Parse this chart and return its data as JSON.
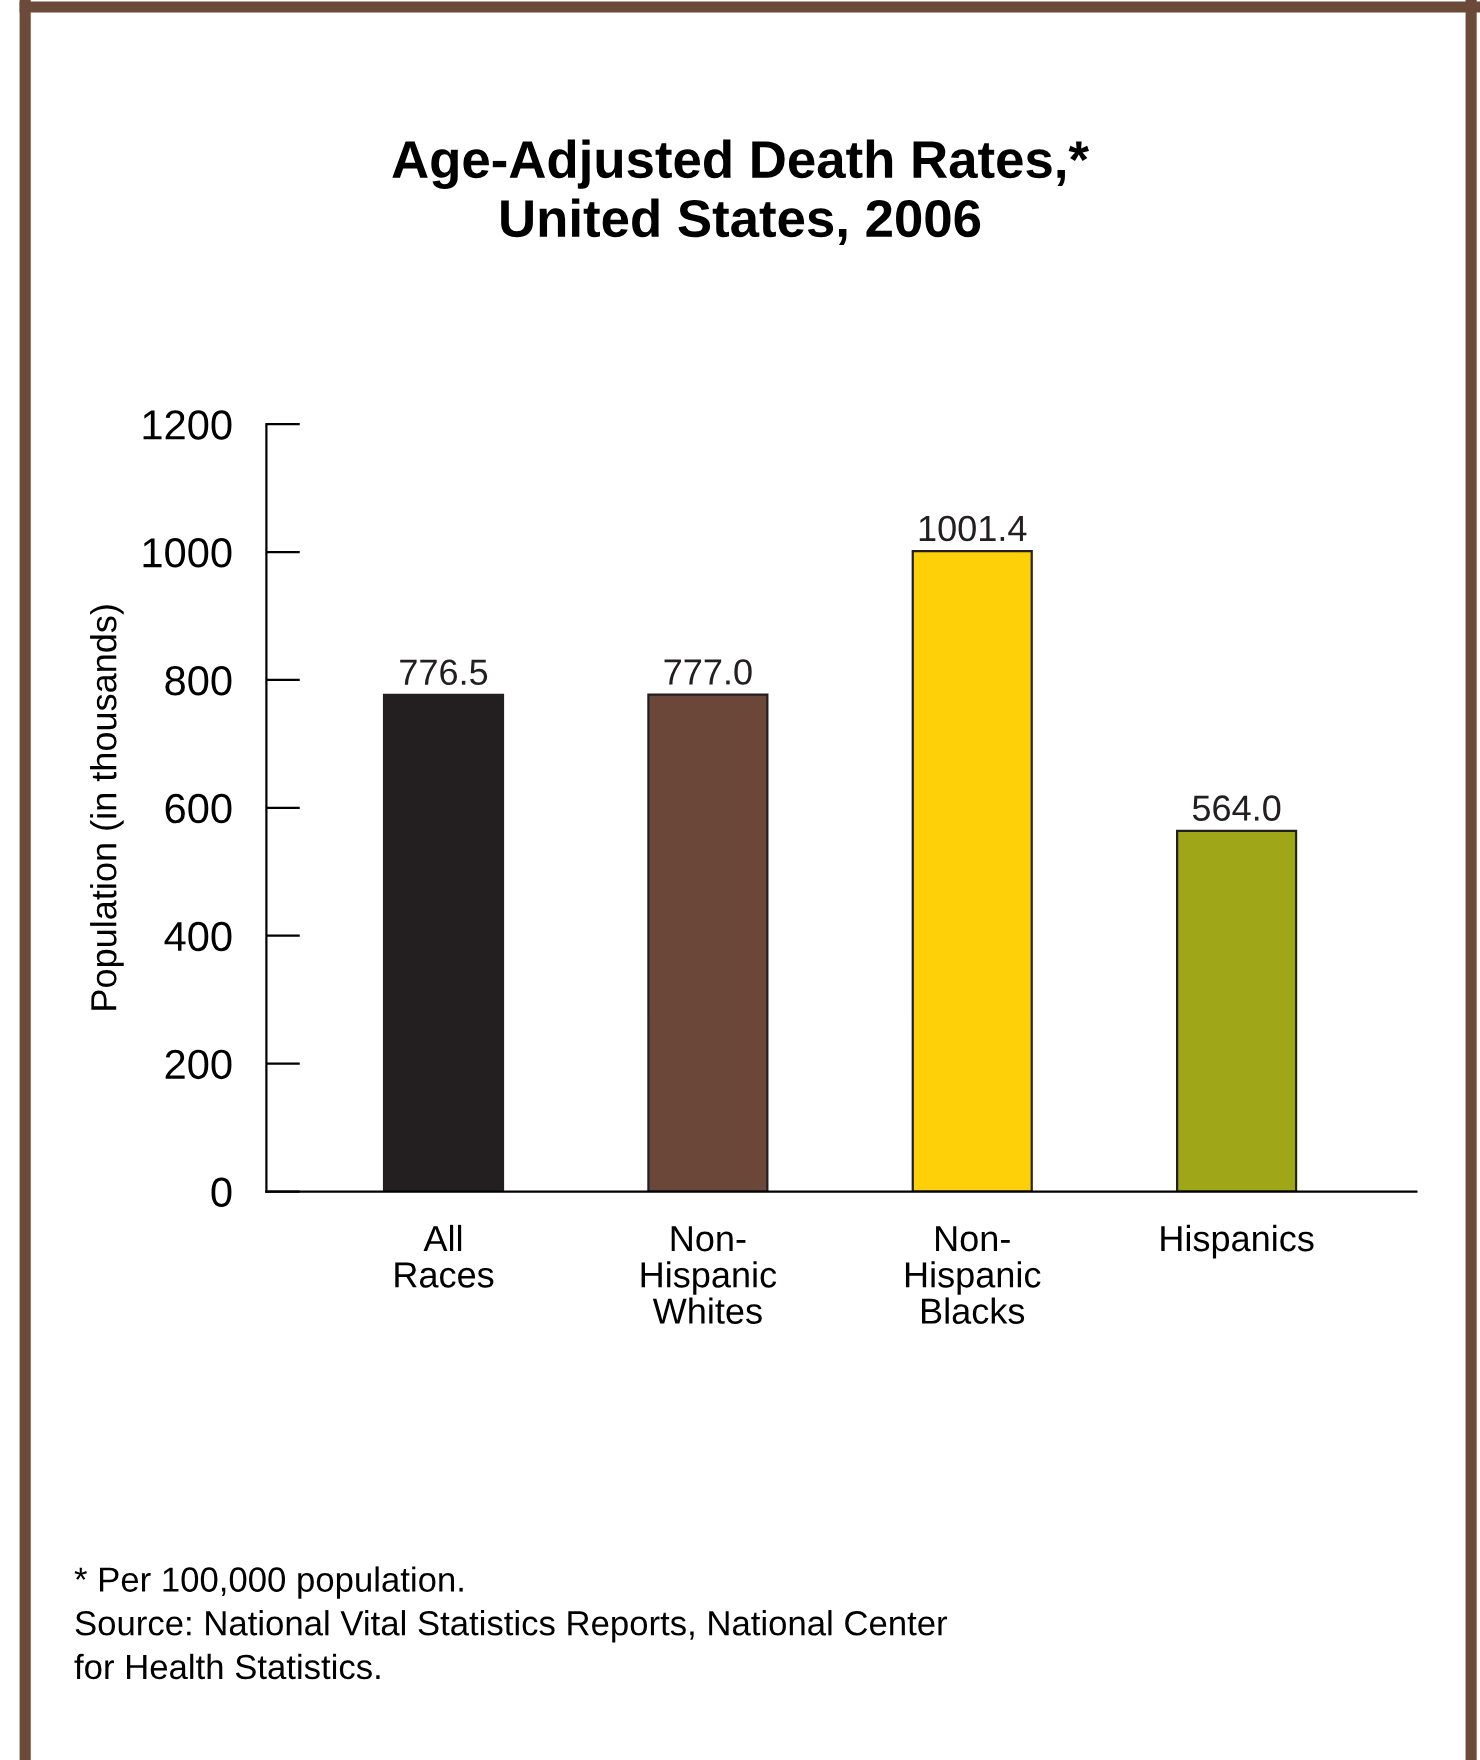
{
  "chart_data": {
    "type": "bar",
    "title": "Age-Adjusted Death Rates,*\nUnited States, 2006",
    "categories": [
      "All\nRaces",
      "Non-\nHispanic\nWhites",
      "Non-\nHispanic\nBlacks",
      "Hispanics"
    ],
    "values": [
      776.5,
      777.0,
      1001.4,
      564.0
    ],
    "colors": [
      "#231f20",
      "#6b4739",
      "#fdd008",
      "#9fa617"
    ],
    "value_labels": [
      "776.5",
      "777.0",
      "1001.4",
      "564.0"
    ],
    "ylabel": "Population (in thousands)",
    "ylim": [
      0,
      1200
    ],
    "yticks": [
      0,
      200,
      400,
      600,
      800,
      1000,
      1200
    ],
    "grid": false,
    "legend": false,
    "annotations": [
      "* Per 100,000 population.\nSource: National Vital Statistics Reports, National Center\nfor Health Statistics."
    ]
  }
}
